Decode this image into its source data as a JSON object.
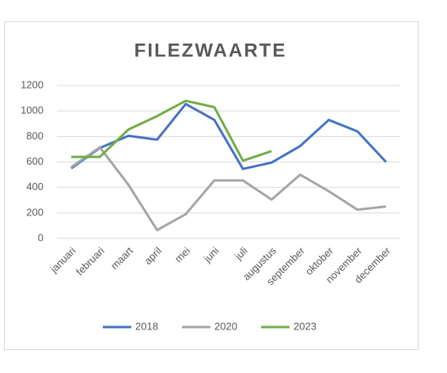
{
  "chart_data": {
    "type": "line",
    "title": "FILEZWAARTE",
    "categories": [
      "januari",
      "februari",
      "maart",
      "april",
      "mei",
      "juni",
      "juli",
      "augustus",
      "september",
      "oktober",
      "november",
      "december"
    ],
    "series": [
      {
        "name": "2018",
        "color": "#4472c4",
        "values": [
          550,
          710,
          805,
          775,
          1055,
          930,
          545,
          595,
          725,
          930,
          840,
          600
        ]
      },
      {
        "name": "2020",
        "color": "#a5a5a5",
        "values": [
          560,
          715,
          420,
          65,
          190,
          455,
          455,
          305,
          500,
          370,
          225,
          250
        ]
      },
      {
        "name": "2023",
        "color": "#70ad47",
        "values": [
          640,
          640,
          855,
          960,
          1080,
          1030,
          610,
          685,
          null,
          null,
          null,
          null
        ]
      }
    ],
    "ylim": [
      0,
      1200
    ],
    "yticks": [
      0,
      200,
      400,
      600,
      800,
      1000,
      1200
    ],
    "grid": true,
    "legend": "bottom"
  }
}
